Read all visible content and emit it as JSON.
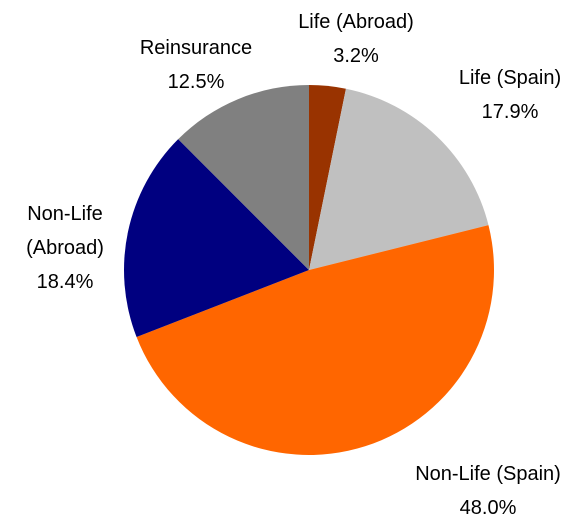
{
  "chart_data": {
    "type": "pie",
    "categories": [
      "Life (Abroad)",
      "Life (Spain)",
      "Non-Life (Spain)",
      "Non-Life (Abroad)",
      "Reinsurance"
    ],
    "values": [
      3.2,
      17.9,
      48.0,
      18.4,
      12.5
    ],
    "value_labels": [
      "3.2%",
      "17.9%",
      "48.0%",
      "18.4%",
      "12.5%"
    ],
    "colors": [
      "#993300",
      "#c0c0c0",
      "#ff6600",
      "#000080",
      "#808080"
    ]
  }
}
